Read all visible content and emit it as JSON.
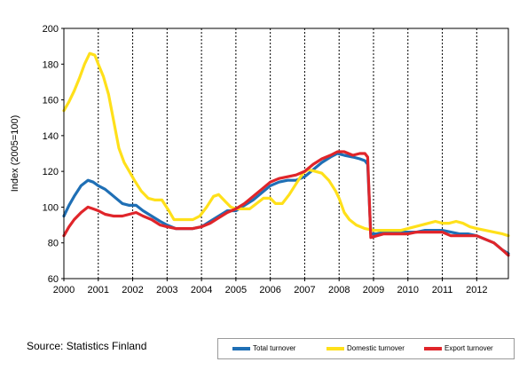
{
  "source_text": "Source: Statistics Finland",
  "chart_data": {
    "type": "line",
    "title": "",
    "xlabel": "",
    "ylabel": "Index (2005=100)",
    "ylim": [
      60,
      200
    ],
    "yticks": [
      60,
      80,
      100,
      120,
      140,
      160,
      180,
      200
    ],
    "xlim": [
      2000,
      2012.92
    ],
    "xticks": [
      "2000",
      "2001",
      "2002",
      "2003",
      "2004",
      "2005",
      "2006",
      "2007",
      "2008",
      "2009",
      "2010",
      "2011",
      "2012"
    ],
    "grid": "vertical dashed lines at year starts",
    "legend_position": "bottom-right",
    "series": [
      {
        "name": "Total turnover",
        "color": "#1f6fb5",
        "points": [
          [
            2000.0,
            95
          ],
          [
            2000.15,
            101
          ],
          [
            2000.3,
            106
          ],
          [
            2000.5,
            112
          ],
          [
            2000.7,
            115
          ],
          [
            2000.85,
            114
          ],
          [
            2001.0,
            112
          ],
          [
            2001.2,
            110
          ],
          [
            2001.45,
            106
          ],
          [
            2001.7,
            102
          ],
          [
            2001.9,
            101
          ],
          [
            2002.1,
            101
          ],
          [
            2002.3,
            98
          ],
          [
            2002.55,
            95
          ],
          [
            2002.8,
            92
          ],
          [
            2003.0,
            90
          ],
          [
            2003.25,
            88
          ],
          [
            2003.5,
            88
          ],
          [
            2003.75,
            88
          ],
          [
            2004.0,
            89
          ],
          [
            2004.25,
            92
          ],
          [
            2004.5,
            95
          ],
          [
            2004.75,
            98
          ],
          [
            2005.0,
            98
          ],
          [
            2005.25,
            101
          ],
          [
            2005.5,
            104
          ],
          [
            2005.75,
            108
          ],
          [
            2006.0,
            112
          ],
          [
            2006.25,
            114
          ],
          [
            2006.5,
            115
          ],
          [
            2006.75,
            115
          ],
          [
            2007.0,
            117
          ],
          [
            2007.25,
            121
          ],
          [
            2007.5,
            125
          ],
          [
            2007.75,
            128
          ],
          [
            2007.95,
            130
          ],
          [
            2008.15,
            129
          ],
          [
            2008.4,
            128
          ],
          [
            2008.6,
            127
          ],
          [
            2008.75,
            126
          ],
          [
            2008.83,
            124
          ],
          [
            2008.92,
            85
          ],
          [
            2009.1,
            85
          ],
          [
            2009.3,
            86
          ],
          [
            2009.5,
            86
          ],
          [
            2009.75,
            86
          ],
          [
            2010.0,
            86
          ],
          [
            2010.25,
            86
          ],
          [
            2010.5,
            87
          ],
          [
            2010.75,
            87
          ],
          [
            2011.0,
            87
          ],
          [
            2011.25,
            86
          ],
          [
            2011.5,
            85
          ],
          [
            2011.75,
            85
          ],
          [
            2012.0,
            84
          ],
          [
            2012.25,
            82
          ],
          [
            2012.5,
            80
          ],
          [
            2012.75,
            76
          ],
          [
            2012.92,
            74
          ]
        ]
      },
      {
        "name": "Domestic turnover",
        "color": "#ffe01a",
        "points": [
          [
            2000.0,
            154
          ],
          [
            2000.15,
            159
          ],
          [
            2000.3,
            165
          ],
          [
            2000.45,
            172
          ],
          [
            2000.6,
            180
          ],
          [
            2000.75,
            186
          ],
          [
            2000.9,
            185
          ],
          [
            2001.0,
            180
          ],
          [
            2001.15,
            173
          ],
          [
            2001.3,
            163
          ],
          [
            2001.45,
            148
          ],
          [
            2001.6,
            133
          ],
          [
            2001.75,
            125
          ],
          [
            2001.9,
            120
          ],
          [
            2002.05,
            115
          ],
          [
            2002.25,
            109
          ],
          [
            2002.45,
            105
          ],
          [
            2002.65,
            104
          ],
          [
            2002.85,
            104
          ],
          [
            2003.05,
            98
          ],
          [
            2003.2,
            93
          ],
          [
            2003.35,
            93
          ],
          [
            2003.55,
            93
          ],
          [
            2003.75,
            93
          ],
          [
            2003.95,
            95
          ],
          [
            2004.15,
            100
          ],
          [
            2004.35,
            106
          ],
          [
            2004.5,
            107
          ],
          [
            2004.65,
            104
          ],
          [
            2004.85,
            100
          ],
          [
            2005.0,
            99
          ],
          [
            2005.2,
            99
          ],
          [
            2005.4,
            99
          ],
          [
            2005.6,
            102
          ],
          [
            2005.8,
            105
          ],
          [
            2006.0,
            105
          ],
          [
            2006.15,
            102
          ],
          [
            2006.35,
            102
          ],
          [
            2006.55,
            107
          ],
          [
            2006.75,
            113
          ],
          [
            2006.95,
            119
          ],
          [
            2007.1,
            121
          ],
          [
            2007.3,
            120
          ],
          [
            2007.5,
            119
          ],
          [
            2007.7,
            115
          ],
          [
            2007.9,
            109
          ],
          [
            2008.0,
            105
          ],
          [
            2008.15,
            97
          ],
          [
            2008.3,
            93
          ],
          [
            2008.5,
            90
          ],
          [
            2008.75,
            88
          ],
          [
            2009.0,
            87
          ],
          [
            2009.2,
            87
          ],
          [
            2009.4,
            87
          ],
          [
            2009.6,
            87
          ],
          [
            2009.8,
            87
          ],
          [
            2010.0,
            88
          ],
          [
            2010.2,
            89
          ],
          [
            2010.4,
            90
          ],
          [
            2010.6,
            91
          ],
          [
            2010.8,
            92
          ],
          [
            2011.0,
            91
          ],
          [
            2011.2,
            91
          ],
          [
            2011.4,
            92
          ],
          [
            2011.6,
            91
          ],
          [
            2011.8,
            89
          ],
          [
            2012.0,
            88
          ],
          [
            2012.25,
            87
          ],
          [
            2012.5,
            86
          ],
          [
            2012.75,
            85
          ],
          [
            2012.92,
            84
          ]
        ]
      },
      {
        "name": "Export turnover",
        "color": "#e0252a",
        "points": [
          [
            2000.0,
            84
          ],
          [
            2000.15,
            89
          ],
          [
            2000.3,
            93
          ],
          [
            2000.5,
            97
          ],
          [
            2000.7,
            100
          ],
          [
            2000.85,
            99
          ],
          [
            2001.0,
            98
          ],
          [
            2001.2,
            96
          ],
          [
            2001.45,
            95
          ],
          [
            2001.7,
            95
          ],
          [
            2001.9,
            96
          ],
          [
            2002.1,
            97
          ],
          [
            2002.3,
            95
          ],
          [
            2002.55,
            93
          ],
          [
            2002.8,
            90
          ],
          [
            2003.0,
            89
          ],
          [
            2003.25,
            88
          ],
          [
            2003.5,
            88
          ],
          [
            2003.75,
            88
          ],
          [
            2004.0,
            89
          ],
          [
            2004.25,
            91
          ],
          [
            2004.5,
            94
          ],
          [
            2004.75,
            97
          ],
          [
            2005.0,
            99
          ],
          [
            2005.25,
            102
          ],
          [
            2005.5,
            106
          ],
          [
            2005.75,
            110
          ],
          [
            2006.0,
            114
          ],
          [
            2006.25,
            116
          ],
          [
            2006.5,
            117
          ],
          [
            2006.75,
            118
          ],
          [
            2007.0,
            120
          ],
          [
            2007.25,
            124
          ],
          [
            2007.5,
            127
          ],
          [
            2007.75,
            129
          ],
          [
            2007.95,
            131
          ],
          [
            2008.15,
            131
          ],
          [
            2008.4,
            129
          ],
          [
            2008.6,
            130
          ],
          [
            2008.75,
            130
          ],
          [
            2008.83,
            128
          ],
          [
            2008.92,
            83
          ],
          [
            2009.1,
            84
          ],
          [
            2009.3,
            85
          ],
          [
            2009.5,
            85
          ],
          [
            2009.75,
            85
          ],
          [
            2010.0,
            85
          ],
          [
            2010.25,
            86
          ],
          [
            2010.5,
            86
          ],
          [
            2010.75,
            86
          ],
          [
            2011.0,
            86
          ],
          [
            2011.25,
            84
          ],
          [
            2011.5,
            84
          ],
          [
            2011.75,
            84
          ],
          [
            2012.0,
            84
          ],
          [
            2012.25,
            82
          ],
          [
            2012.5,
            80
          ],
          [
            2012.75,
            76
          ],
          [
            2012.92,
            73
          ]
        ]
      }
    ]
  }
}
